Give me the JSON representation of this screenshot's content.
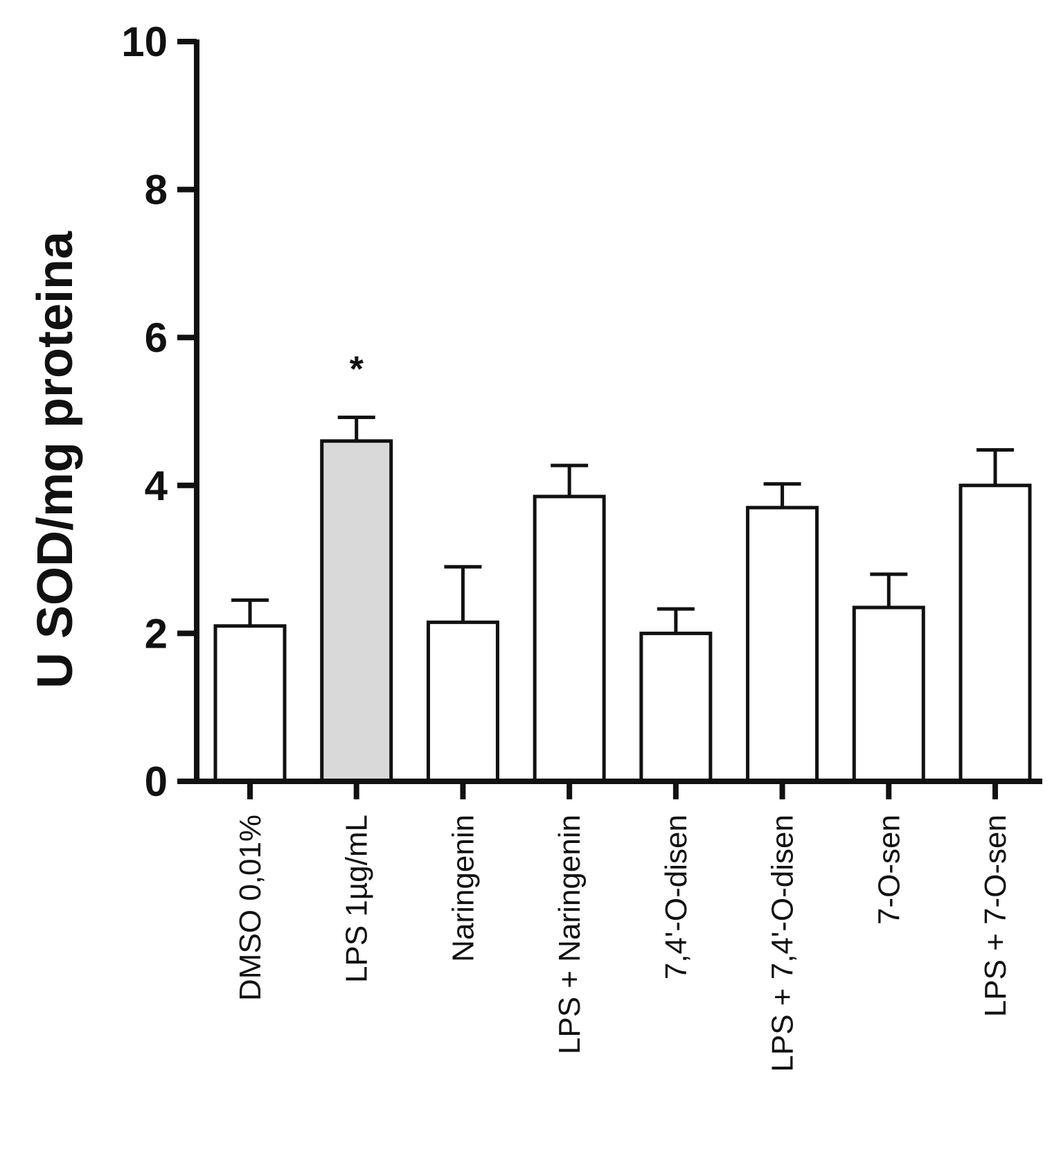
{
  "chart_data": {
    "type": "bar",
    "title": "",
    "xlabel": "",
    "ylabel": "U SOD/mg proteina",
    "ylim": [
      0,
      10
    ],
    "yticks": [
      "0",
      "2",
      "4",
      "6",
      "8",
      "10"
    ],
    "grid": false,
    "categories": [
      "DMSO 0,01%",
      "LPS 1µg/mL",
      "Naringenin",
      "LPS + Naringenin",
      "7,4'-O-disen",
      "LPS + 7,4'-O-disen",
      "7-O-sen",
      "LPS + 7-O-sen"
    ],
    "values": [
      2.1,
      4.6,
      2.15,
      3.85,
      2.0,
      3.7,
      2.35,
      4.0
    ],
    "errors": [
      0.35,
      0.32,
      0.75,
      0.42,
      0.33,
      0.32,
      0.45,
      0.48
    ],
    "annotations": [
      "",
      "*",
      "",
      "",
      "",
      "",
      "",
      ""
    ],
    "colors": {
      "default_fill": "#ffffff",
      "highlight_fill": "#d9d9d9",
      "stroke": "#111111"
    },
    "highlight_index": 1
  }
}
